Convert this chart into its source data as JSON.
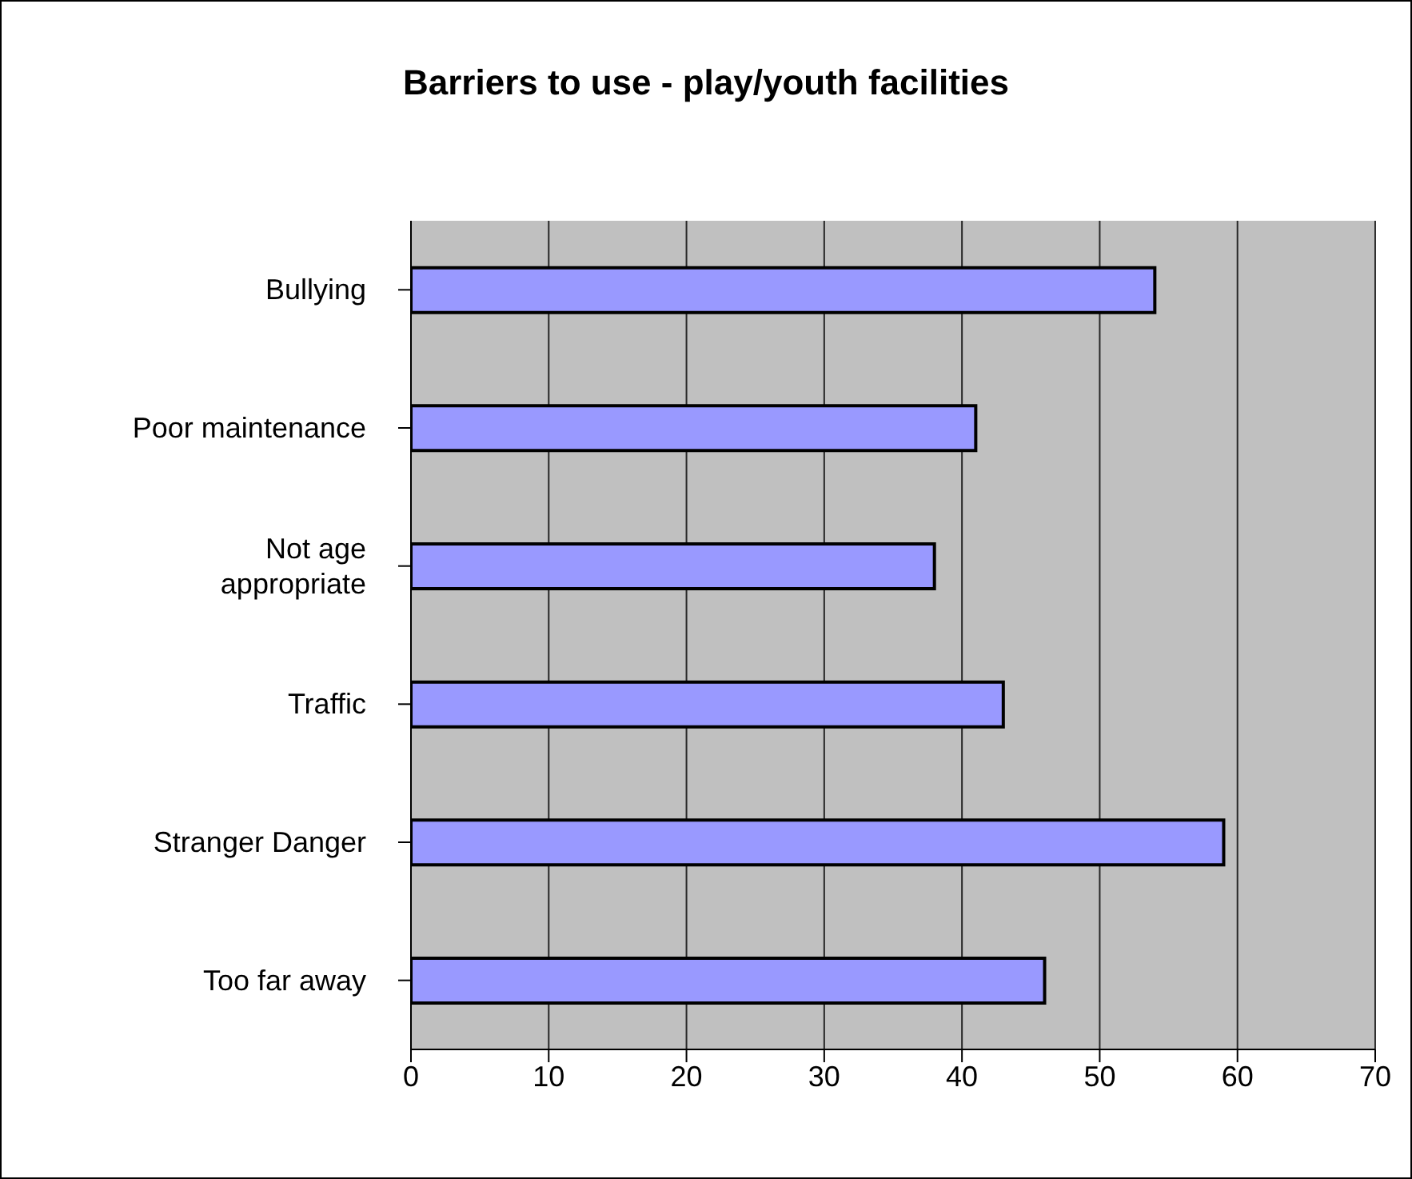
{
  "chart_data": {
    "type": "bar",
    "orientation": "horizontal",
    "title": "Barriers to use - play/youth facilities",
    "categories": [
      "Bullying",
      "Poor maintenance",
      "Not age appropriate",
      "Traffic",
      "Stranger Danger",
      "Too far away"
    ],
    "values": [
      54,
      41,
      38,
      43,
      59,
      46
    ],
    "color": "#9999ff",
    "xlim": [
      0,
      70
    ],
    "xticks": [
      0,
      10,
      20,
      30,
      40,
      50,
      60,
      70
    ],
    "grid": "x",
    "legend": false
  }
}
